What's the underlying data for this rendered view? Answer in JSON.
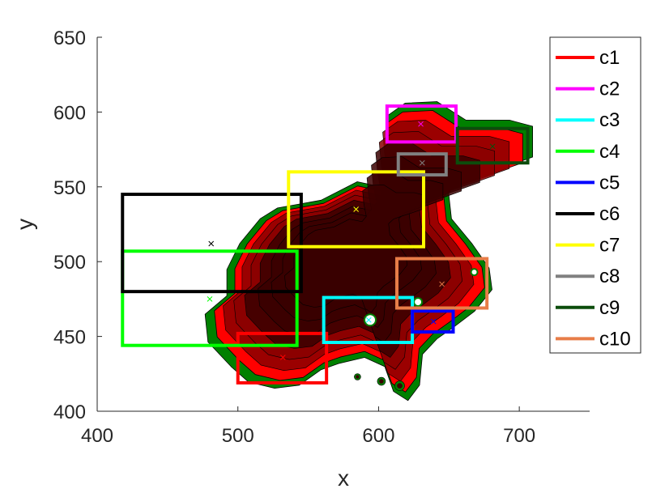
{
  "chart_data": {
    "type": "scatter",
    "xlabel": "x",
    "ylabel": "y",
    "xlim": [
      400,
      750
    ],
    "ylim": [
      400,
      650
    ],
    "xticks": [
      400,
      500,
      600,
      700
    ],
    "yticks": [
      400,
      450,
      500,
      550,
      600,
      650
    ],
    "grid": false,
    "legend_position": "right",
    "density_colors": {
      "outer": "#008000",
      "mid": "#ff0000",
      "core": "#3a0000",
      "contour": "#000000"
    },
    "series": [
      {
        "name": "c1",
        "color": "#ff0000",
        "box": [
          500,
          419,
          563,
          452
        ],
        "center": [
          532,
          436
        ]
      },
      {
        "name": "c2",
        "color": "#ff00ff",
        "box": [
          606,
          580,
          655,
          604
        ],
        "center": [
          630,
          592
        ]
      },
      {
        "name": "c3",
        "color": "#00ffff",
        "box": [
          561,
          446,
          624,
          476
        ],
        "center": [
          593,
          461
        ]
      },
      {
        "name": "c4",
        "color": "#00ff00",
        "box": [
          418,
          444,
          542,
          507
        ],
        "center": [
          480,
          475
        ]
      },
      {
        "name": "c5",
        "color": "#0000ff",
        "box": [
          624,
          453,
          653,
          467
        ],
        "center": [
          639,
          460
        ]
      },
      {
        "name": "c6",
        "color": "#000000",
        "box": [
          418,
          480,
          545,
          545
        ],
        "center": [
          481,
          512
        ]
      },
      {
        "name": "c7",
        "color": "#ffff00",
        "box": [
          536,
          510,
          632,
          560
        ],
        "center": [
          584,
          535
        ]
      },
      {
        "name": "c8",
        "color": "#808080",
        "box": [
          614,
          558,
          648,
          572
        ],
        "center": [
          631,
          566
        ]
      },
      {
        "name": "c9",
        "color": "#0c4d0c",
        "box": [
          656,
          566,
          706,
          589
        ],
        "center": [
          681,
          577
        ]
      },
      {
        "name": "c10",
        "color": "#e87d48",
        "box": [
          613,
          469,
          677,
          502
        ],
        "center": [
          645,
          485
        ]
      }
    ]
  }
}
